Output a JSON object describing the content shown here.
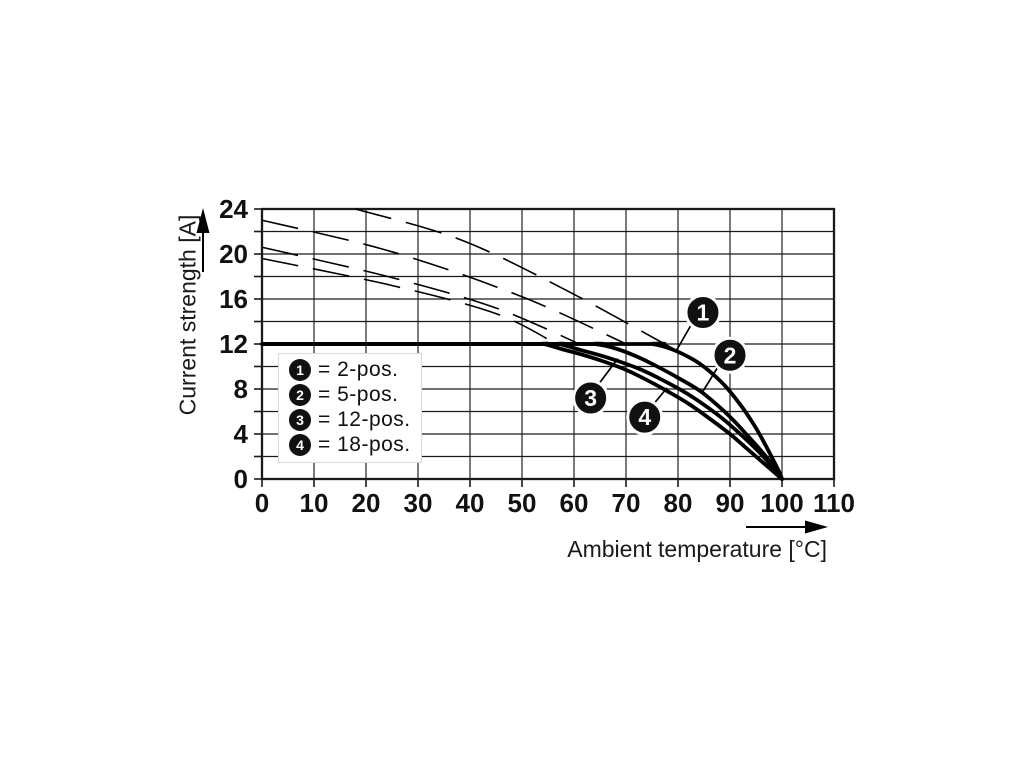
{
  "chart_data": {
    "type": "line",
    "title": "",
    "xlabel": "Ambient temperature [°C]",
    "ylabel": "Current strength [A]",
    "xlim": [
      0,
      110
    ],
    "ylim": [
      0,
      24
    ],
    "xticks": [
      0,
      10,
      20,
      30,
      40,
      50,
      60,
      70,
      80,
      90,
      100,
      110
    ],
    "yticks": [
      0,
      4,
      8,
      12,
      16,
      20,
      24
    ],
    "x_gridline_step": 10,
    "y_gridline_step": 2,
    "grid": true,
    "legend_position": "inside-lower-left",
    "rated_plateau_a": 12,
    "zero_current_at_c": 100,
    "series": [
      {
        "name": "2-pos.",
        "marker": "1",
        "style": "solid",
        "points": [
          [
            0,
            12
          ],
          [
            71,
            12
          ],
          [
            75,
            12
          ],
          [
            79,
            11.5
          ],
          [
            83,
            10.6
          ],
          [
            86,
            9.6
          ],
          [
            89,
            8.3
          ],
          [
            92,
            6.6
          ],
          [
            94.5,
            4.9
          ],
          [
            96.5,
            3.3
          ],
          [
            98.3,
            1.7
          ],
          [
            99.5,
            0.6
          ],
          [
            100,
            0
          ]
        ]
      },
      {
        "name": "5-pos.",
        "marker": "2",
        "style": "solid",
        "points": [
          [
            0,
            12
          ],
          [
            60,
            12
          ],
          [
            64,
            12
          ],
          [
            68,
            11.6
          ],
          [
            72,
            10.9
          ],
          [
            76,
            10
          ],
          [
            80,
            9
          ],
          [
            84,
            7.9
          ],
          [
            87.5,
            6.6
          ],
          [
            90.5,
            5.3
          ],
          [
            93.5,
            3.8
          ],
          [
            96,
            2.5
          ],
          [
            98.3,
            1.2
          ],
          [
            100,
            0
          ]
        ]
      },
      {
        "name": "12-pos.",
        "marker": "3",
        "style": "solid",
        "points": [
          [
            0,
            12
          ],
          [
            53,
            12
          ],
          [
            57,
            12
          ],
          [
            61,
            11.5
          ],
          [
            65,
            11
          ],
          [
            69,
            10.4
          ],
          [
            73,
            9.7
          ],
          [
            77,
            8.8
          ],
          [
            81,
            7.8
          ],
          [
            85,
            6.6
          ],
          [
            88.5,
            5.4
          ],
          [
            91.5,
            4.2
          ],
          [
            94.5,
            2.9
          ],
          [
            97,
            1.7
          ],
          [
            99,
            0.6
          ],
          [
            100,
            0
          ]
        ]
      },
      {
        "name": "18-pos.",
        "marker": "4",
        "style": "solid",
        "points": [
          [
            0,
            12
          ],
          [
            50,
            12
          ],
          [
            54,
            12
          ],
          [
            58,
            11.5
          ],
          [
            62,
            11
          ],
          [
            66,
            10.4
          ],
          [
            70,
            9.7
          ],
          [
            74,
            8.8
          ],
          [
            78,
            7.8
          ],
          [
            82,
            6.7
          ],
          [
            86,
            5.4
          ],
          [
            90,
            4
          ],
          [
            93,
            2.8
          ],
          [
            96,
            1.6
          ],
          [
            98.5,
            0.6
          ],
          [
            100,
            0
          ]
        ]
      }
    ],
    "dashed_extensions": [
      {
        "of": "2-pos.",
        "points": [
          [
            18,
            24
          ],
          [
            38,
            21.3
          ],
          [
            58,
            16.9
          ],
          [
            79,
            11.6
          ]
        ]
      },
      {
        "of": "5-pos.",
        "points": [
          [
            0,
            23
          ],
          [
            25,
            20.2
          ],
          [
            50,
            16.2
          ],
          [
            70.5,
            11.9
          ]
        ]
      },
      {
        "of": "12-pos.",
        "points": [
          [
            0,
            20.6
          ],
          [
            25,
            17.9
          ],
          [
            45,
            15.2
          ],
          [
            61.5,
            11.9
          ]
        ]
      },
      {
        "of": "18-pos.",
        "points": [
          [
            0,
            19.6
          ],
          [
            25,
            17.2
          ],
          [
            45,
            14.7
          ],
          [
            57,
            11.9
          ]
        ]
      }
    ],
    "callouts": [
      {
        "label": "1",
        "x": 84.8,
        "y": 14.8,
        "leader": [
          [
            82.4,
            13.6
          ],
          [
            79.8,
            11.5
          ]
        ]
      },
      {
        "label": "2",
        "x": 90.0,
        "y": 11.0,
        "leader": [
          [
            87.6,
            9.9
          ],
          [
            84.8,
            7.8
          ]
        ]
      },
      {
        "label": "3",
        "x": 63.2,
        "y": 7.2,
        "leader": [
          [
            64.7,
            8.4
          ],
          [
            68.4,
            10.7
          ]
        ]
      },
      {
        "label": "4",
        "x": 73.6,
        "y": 5.5,
        "leader": [
          [
            75.2,
            6.6
          ],
          [
            77.9,
            8.1
          ]
        ]
      }
    ],
    "legend": {
      "entries": [
        {
          "marker": "1",
          "label": "= 2-pos."
        },
        {
          "marker": "2",
          "label": "= 5-pos."
        },
        {
          "marker": "3",
          "label": "= 12-pos."
        },
        {
          "marker": "4",
          "label": "= 18-pos."
        }
      ]
    }
  },
  "colors": {
    "line": "#000000",
    "grid": "#1a1a1a",
    "badge_fill": "#111111",
    "badge_text": "#ffffff",
    "background": "#ffffff"
  }
}
